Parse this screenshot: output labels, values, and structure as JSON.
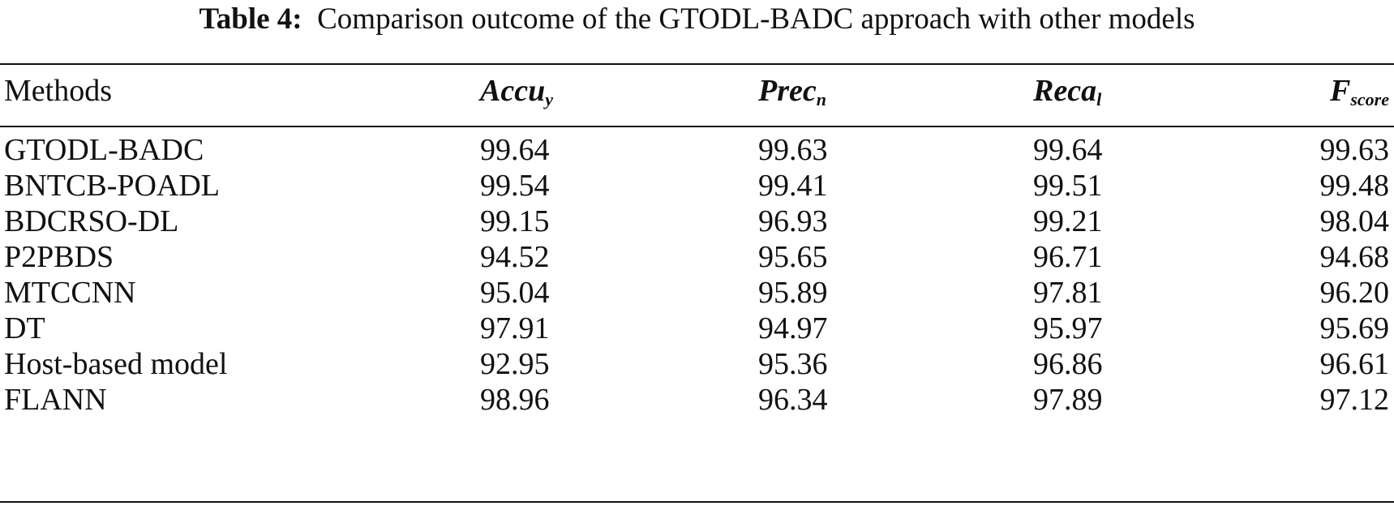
{
  "caption": {
    "label": "Table 4:",
    "text": "Comparison outcome of the GTODL-BADC approach with other models"
  },
  "table": {
    "header": [
      {
        "text": "Methods"
      },
      {
        "text": "Accu",
        "sub": "y"
      },
      {
        "text": "Prec",
        "sub": "n"
      },
      {
        "text": "Reca",
        "sub": "l"
      },
      {
        "text": "F",
        "sub": "score"
      }
    ],
    "rows": [
      [
        "GTODL-BADC",
        "99.64",
        "99.63",
        "99.64",
        "99.63"
      ],
      [
        "BNTCB-POADL",
        "99.54",
        "99.41",
        "99.51",
        "99.48"
      ],
      [
        "BDCRSO-DL",
        "99.15",
        "96.93",
        "99.21",
        "98.04"
      ],
      [
        "P2PBDS",
        "94.52",
        "95.65",
        "96.71",
        "94.68"
      ],
      [
        "MTCCNN",
        "95.04",
        "95.89",
        "97.81",
        "96.20"
      ],
      [
        "DT",
        "97.91",
        "94.97",
        "95.97",
        "95.69"
      ],
      [
        "Host-based model",
        "92.95",
        "95.36",
        "96.86",
        "96.61"
      ],
      [
        "FLANN",
        "98.96",
        "96.34",
        "97.89",
        "97.12"
      ]
    ]
  }
}
